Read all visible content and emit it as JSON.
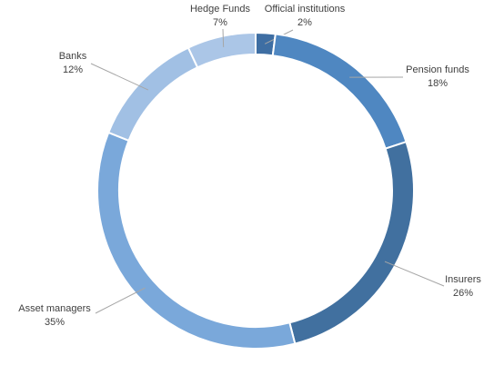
{
  "chart_data": {
    "type": "donut",
    "categories": [
      "Official institutions",
      "Pension funds",
      "Insurers",
      "Asset managers",
      "Banks",
      "Hedge Funds"
    ],
    "values": [
      2,
      18,
      26,
      35,
      12,
      7
    ],
    "value_labels": [
      "2%",
      "18%",
      "26%",
      "35%",
      "12%",
      "7%"
    ],
    "colors": [
      "#3e6ea3",
      "#4f87c1",
      "#41709f",
      "#7aa8da",
      "#a1c0e4",
      "#abc6e7"
    ]
  }
}
